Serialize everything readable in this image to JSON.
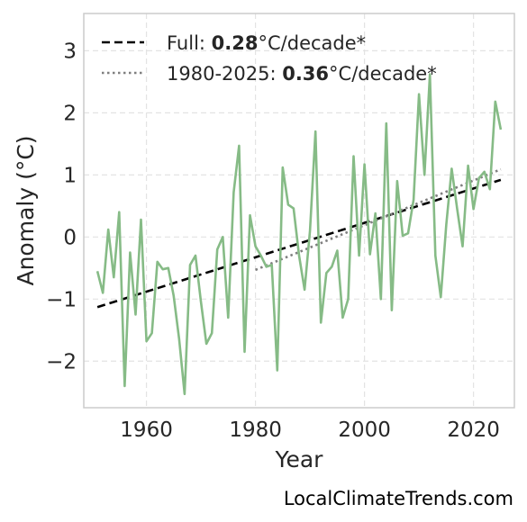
{
  "chart_data": {
    "type": "line",
    "title": "",
    "xlabel": "Year",
    "ylabel": "Anomaly (°C)",
    "xlim": [
      1948.5,
      2027.5
    ],
    "ylim": [
      -2.75,
      3.6
    ],
    "x_ticks": [
      1960,
      1980,
      2000,
      2020
    ],
    "y_ticks": [
      -2,
      -1,
      0,
      1,
      2,
      3
    ],
    "y_tick_labels": [
      "−2",
      "−1",
      "0",
      "1",
      "2",
      "3"
    ],
    "grid": true,
    "grid_style": "dashed",
    "legend_position": "top-left",
    "series": [
      {
        "kind": "observed",
        "color": "#86bb86",
        "x": [
          1951,
          1952,
          1953,
          1954,
          1955,
          1956,
          1957,
          1958,
          1959,
          1960,
          1961,
          1962,
          1963,
          1964,
          1965,
          1966,
          1967,
          1968,
          1969,
          1970,
          1971,
          1972,
          1973,
          1974,
          1975,
          1976,
          1977,
          1978,
          1979,
          1980,
          1981,
          1982,
          1983,
          1984,
          1985,
          1986,
          1987,
          1988,
          1989,
          1990,
          1991,
          1992,
          1993,
          1994,
          1995,
          1996,
          1997,
          1998,
          1999,
          2000,
          2001,
          2002,
          2003,
          2004,
          2005,
          2006,
          2007,
          2008,
          2009,
          2010,
          2011,
          2012,
          2013,
          2014,
          2015,
          2016,
          2017,
          2018,
          2019,
          2020,
          2021,
          2022,
          2023,
          2024,
          2025
        ],
        "y": [
          -0.55,
          -0.9,
          0.12,
          -0.65,
          0.4,
          -2.4,
          -0.25,
          -1.25,
          0.28,
          -1.68,
          -1.55,
          -0.4,
          -0.52,
          -0.5,
          -0.95,
          -1.65,
          -2.53,
          -0.45,
          -0.3,
          -1.05,
          -1.72,
          -1.55,
          -0.2,
          0.0,
          -1.3,
          0.72,
          1.47,
          -1.85,
          0.35,
          -0.15,
          -0.3,
          -0.48,
          -0.45,
          -2.15,
          1.12,
          0.52,
          0.46,
          -0.3,
          -0.85,
          0.1,
          1.7,
          -1.38,
          -0.58,
          -0.48,
          -0.22,
          -1.3,
          -1.0,
          1.3,
          -0.3,
          1.17,
          -0.28,
          0.38,
          -1.0,
          1.83,
          -1.18,
          0.9,
          0.02,
          0.06,
          0.6,
          2.3,
          1.0,
          2.62,
          -0.3,
          -0.97,
          0.2,
          1.1,
          0.45,
          -0.15,
          1.15,
          0.45,
          0.95,
          1.05,
          0.77,
          2.18,
          1.73
        ]
      },
      {
        "kind": "trend",
        "name_label": "Full: ",
        "rate": "0.28",
        "unit": "°C/decade*",
        "color": "#000000",
        "line_style": "dashed",
        "x": [
          1951,
          2025
        ],
        "y": [
          -1.13,
          0.92
        ]
      },
      {
        "kind": "trend",
        "name_label": "1980-2025: ",
        "rate": "0.36",
        "unit": "°C/decade*",
        "color": "#7f7f7f",
        "line_style": "dotted",
        "x": [
          1980,
          2025
        ],
        "y": [
          -0.53,
          1.09
        ]
      }
    ]
  },
  "credit": "LocalClimateTrends.com"
}
